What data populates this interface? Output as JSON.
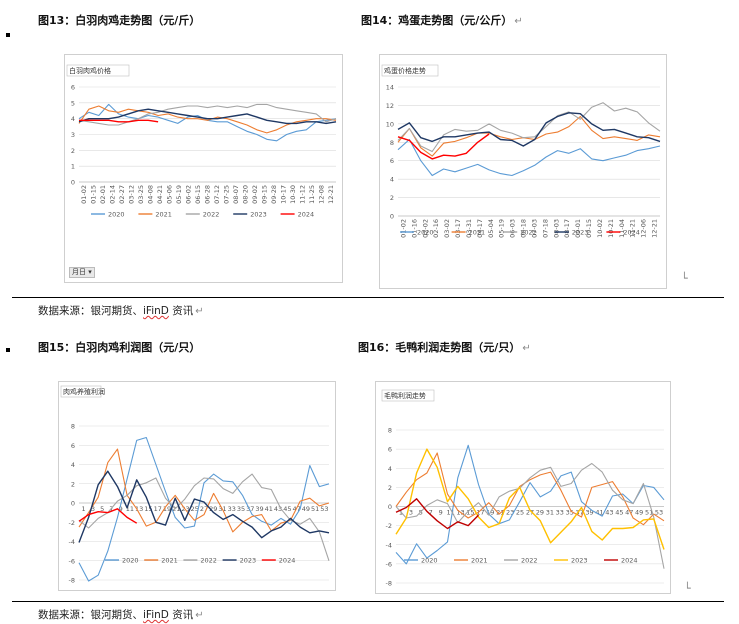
{
  "fig13": {
    "title": "图13：白羽肉鸡走势图（元/斤）",
    "chart_data": {
      "type": "line",
      "title": "白羽肉鸡价格",
      "ylim": [
        0,
        6
      ],
      "yticks": [
        "0",
        "1",
        "2",
        "3",
        "4",
        "5",
        "6"
      ],
      "xticks": [
        "01-02",
        "01-15",
        "02-01",
        "02-14",
        "02-27",
        "03-12",
        "03-25",
        "04-08",
        "04-21",
        "05-06",
        "05-19",
        "06-02",
        "06-15",
        "06-28",
        "07-12",
        "07-25",
        "08-07",
        "08-20",
        "09-02",
        "09-15",
        "09-28",
        "10-17",
        "10-30",
        "11-12",
        "11-25",
        "12-08",
        "12-21"
      ],
      "series": [
        {
          "name": "2020",
          "color": "#5b9bd5",
          "values": [
            4.0,
            4.4,
            4.2,
            4.9,
            4.3,
            4.1,
            4.0,
            4.2,
            4.1,
            3.9,
            3.7,
            4.1,
            4.2,
            3.9,
            3.8,
            3.8,
            3.5,
            3.2,
            3.0,
            2.7,
            2.6,
            3.0,
            3.2,
            3.3,
            3.8,
            3.9,
            4.0
          ]
        },
        {
          "name": "2021",
          "color": "#ed7d31",
          "values": [
            3.7,
            4.6,
            4.8,
            4.5,
            4.4,
            4.6,
            4.5,
            4.4,
            4.2,
            4.3,
            4.1,
            4.0,
            4.0,
            3.9,
            4.1,
            4.0,
            3.8,
            3.6,
            3.3,
            3.1,
            3.3,
            3.6,
            3.8,
            3.9,
            4.0,
            4.0,
            3.9
          ]
        },
        {
          "name": "2022",
          "color": "#a5a5a5",
          "values": [
            3.9,
            3.8,
            3.7,
            3.6,
            3.6,
            3.8,
            4.0,
            4.3,
            4.4,
            4.6,
            4.7,
            4.8,
            4.8,
            4.7,
            4.8,
            4.7,
            4.8,
            4.7,
            4.9,
            4.9,
            4.7,
            4.6,
            4.5,
            4.4,
            4.3,
            3.8,
            4.0
          ]
        },
        {
          "name": "2023",
          "color": "#1f3864",
          "values": [
            3.8,
            4.0,
            4.0,
            4.0,
            4.1,
            4.3,
            4.5,
            4.6,
            4.5,
            4.4,
            4.3,
            4.2,
            4.1,
            4.0,
            4.0,
            4.1,
            4.2,
            4.3,
            4.1,
            3.9,
            3.8,
            3.7,
            3.7,
            3.8,
            3.8,
            3.7,
            3.8
          ]
        },
        {
          "name": "2024",
          "color": "#ff0000",
          "values": [
            3.9,
            3.9,
            3.9,
            3.9,
            3.8,
            3.8,
            3.9,
            3.9,
            3.8
          ]
        }
      ],
      "filter_label": "月日"
    }
  },
  "fig14": {
    "title": "图14：鸡蛋走势图（元/公斤）",
    "chart_data": {
      "type": "line",
      "title": "鸡蛋价格走势",
      "ylim": [
        0,
        14
      ],
      "yticks": [
        "0",
        "2",
        "4",
        "6",
        "8",
        "10",
        "12",
        "14"
      ],
      "xticks": [
        "01-02",
        "01-16",
        "02-02",
        "02-16",
        "03-02",
        "03-17",
        "03-31",
        "04-17",
        "05-04",
        "05-19",
        "06-03",
        "06-18",
        "07-03",
        "07-18",
        "08-03",
        "08-17",
        "09-01",
        "09-15",
        "10-02",
        "10-21",
        "11-04",
        "11-21",
        "12-06",
        "12-21"
      ],
      "series": [
        {
          "name": "2020",
          "color": "#5b9bd5",
          "values": [
            7.2,
            8.3,
            6.0,
            4.4,
            5.1,
            4.8,
            5.2,
            5.6,
            5.0,
            4.6,
            4.4,
            4.9,
            5.5,
            6.4,
            7.1,
            6.8,
            7.3,
            6.2,
            6.0,
            6.3,
            6.6,
            7.1,
            7.3,
            7.6
          ]
        },
        {
          "name": "2021",
          "color": "#ed7d31",
          "values": [
            8.0,
            9.5,
            7.4,
            6.5,
            7.9,
            8.1,
            8.5,
            9.0,
            9.0,
            8.6,
            8.3,
            8.5,
            8.3,
            8.9,
            9.1,
            9.7,
            10.8,
            9.3,
            8.4,
            8.6,
            8.4,
            8.2,
            8.8,
            8.6
          ]
        },
        {
          "name": "2022",
          "color": "#a5a5a5",
          "values": [
            8.2,
            9.5,
            7.6,
            7.0,
            8.8,
            9.4,
            9.2,
            9.3,
            10.0,
            9.3,
            9.0,
            8.5,
            8.6,
            9.7,
            10.9,
            11.3,
            10.5,
            11.8,
            12.3,
            11.4,
            11.7,
            11.3,
            10.1,
            9.2
          ]
        },
        {
          "name": "2023",
          "color": "#1f3864",
          "values": [
            9.4,
            10.1,
            8.5,
            8.1,
            8.6,
            8.6,
            8.8,
            9.0,
            9.1,
            8.3,
            8.2,
            7.6,
            8.3,
            10.1,
            10.8,
            11.2,
            11.1,
            10.0,
            9.3,
            9.4,
            9.0,
            8.6,
            8.5,
            8.1
          ]
        },
        {
          "name": "2024",
          "color": "#ff0000",
          "values": [
            8.6,
            8.2,
            6.9,
            6.2,
            6.6,
            6.5,
            6.8,
            8.0,
            8.9
          ]
        }
      ]
    }
  },
  "fig15": {
    "title": "图15：白羽肉鸡利润图（元/只）",
    "chart_data": {
      "type": "line",
      "title": "肉鸡养殖利润",
      "ylim": [
        -8,
        8
      ],
      "yticks": [
        "8",
        "6",
        "4",
        "2",
        "0",
        "-2",
        "-4",
        "-6",
        "-8"
      ],
      "xticks": [
        "1",
        "3",
        "5",
        "7",
        "9",
        "11",
        "13",
        "15",
        "17",
        "19",
        "21",
        "23",
        "25",
        "27",
        "29",
        "31",
        "33",
        "35",
        "37",
        "39",
        "41",
        "43",
        "45",
        "47",
        "49",
        "51",
        "53"
      ],
      "series": [
        {
          "name": "2020",
          "color": "#5b9bd5",
          "values": [
            -6.2,
            -8.1,
            -7.5,
            -5.0,
            -1.5,
            2.5,
            6.5,
            6.8,
            4.0,
            1.2,
            -1.5,
            -2.6,
            -2.4,
            2.1,
            3.0,
            2.3,
            2.2,
            0.8,
            -1.2,
            -1.9,
            -2.3,
            -1.6,
            -2.2,
            -0.6,
            3.9,
            1.7,
            2.0
          ]
        },
        {
          "name": "2021",
          "color": "#ed7d31",
          "values": [
            -2.5,
            -1.0,
            0.6,
            4.2,
            5.6,
            0.8,
            -0.6,
            -2.4,
            -2.0,
            -0.4,
            0.8,
            -0.6,
            -1.8,
            -1.2,
            1.0,
            -0.8,
            -3.0,
            -2.0,
            -1.4,
            -1.2,
            -2.9,
            -2.1,
            -1.8,
            0.2,
            0.5,
            -0.3,
            0.0
          ]
        },
        {
          "name": "2022",
          "color": "#a5a5a5",
          "values": [
            -1.8,
            -2.6,
            -1.6,
            -1.0,
            0.2,
            0.8,
            1.8,
            2.1,
            2.6,
            0.5,
            -0.6,
            0.4,
            1.8,
            2.6,
            2.5,
            1.5,
            1.0,
            2.2,
            3.0,
            1.6,
            1.4,
            -0.6,
            -1.8,
            -2.2,
            -1.6,
            -3.0,
            -6.0
          ]
        },
        {
          "name": "2023",
          "color": "#1f3864",
          "values": [
            -4.1,
            -1.5,
            1.9,
            3.3,
            1.7,
            -0.5,
            2.4,
            0.6,
            -2.0,
            -2.3,
            0.5,
            -1.8,
            0.4,
            0.1,
            -1.0,
            -1.7,
            -1.2,
            -1.9,
            -2.5,
            -3.6,
            -2.9,
            -2.5,
            -1.6,
            -2.5,
            -3.1,
            -2.9,
            -3.1
          ]
        },
        {
          "name": "2024",
          "color": "#ff0000",
          "values": [
            -1.9,
            -1.2,
            -0.9,
            -1.0,
            -0.6,
            -1.5,
            -2.1
          ]
        }
      ]
    }
  },
  "fig16": {
    "title": "图16：毛鸭利润走势图（元/只）",
    "chart_data": {
      "type": "line",
      "title": "毛鸭利润走势",
      "ylim": [
        -8,
        8
      ],
      "yticks": [
        "8",
        "6",
        "4",
        "2",
        "0",
        "-2",
        "-4",
        "-6",
        "-8"
      ],
      "xticks": [
        "1",
        "3",
        "5",
        "7",
        "9",
        "11",
        "13",
        "15",
        "17",
        "19",
        "21",
        "23",
        "25",
        "27",
        "29",
        "31",
        "33",
        "35",
        "37",
        "39",
        "41",
        "43",
        "45",
        "47",
        "49",
        "51",
        "53"
      ],
      "series": [
        {
          "name": "2020",
          "color": "#5b9bd5",
          "values": [
            -4.8,
            -6.0,
            -3.9,
            -5.4,
            -4.6,
            -3.7,
            3.0,
            6.4,
            2.3,
            -0.8,
            -1.8,
            -1.4,
            0.5,
            2.5,
            1.0,
            1.6,
            3.2,
            3.6,
            0.5,
            -0.4,
            -1.0,
            1.1,
            1.3,
            0.3,
            2.2,
            2.0,
            0.7
          ]
        },
        {
          "name": "2021",
          "color": "#ed7d31",
          "values": [
            0.0,
            1.5,
            2.8,
            3.5,
            5.6,
            1.3,
            -0.4,
            -1.2,
            -0.6,
            0.4,
            -0.8,
            0.1,
            2.1,
            2.8,
            3.3,
            3.6,
            1.7,
            -0.5,
            -1.1,
            2.0,
            2.3,
            2.6,
            1.0,
            -1.2,
            -1.9,
            -0.8,
            -1.5
          ]
        },
        {
          "name": "2022",
          "color": "#a5a5a5",
          "values": [
            0.0,
            -1.2,
            -1.0,
            0.1,
            0.7,
            0.3,
            -1.7,
            -0.5,
            0.4,
            -0.9,
            1.0,
            1.6,
            1.9,
            3.0,
            3.8,
            4.1,
            2.1,
            2.4,
            3.8,
            4.5,
            3.6,
            1.7,
            0.7,
            0.3,
            2.4,
            -1.1,
            -6.5
          ]
        },
        {
          "name": "2023",
          "color": "#ffc000",
          "values": [
            -2.9,
            -1.2,
            3.5,
            6.0,
            4.1,
            0.5,
            2.1,
            0.8,
            -1.1,
            -2.2,
            -1.8,
            0.9,
            2.0,
            -0.4,
            -1.5,
            -3.8,
            -2.7,
            -1.6,
            -0.1,
            -2.6,
            -3.5,
            -2.3,
            -2.3,
            -2.2,
            -1.4,
            -1.3,
            -4.5
          ]
        },
        {
          "name": "2024",
          "color": "#c00000",
          "values": [
            -0.6,
            -0.1,
            0.8,
            -0.5,
            -1.5,
            -2.3,
            -1.6,
            -2.0,
            -0.9
          ]
        }
      ]
    }
  },
  "source1": {
    "text": "数据来源：银河期货、",
    "ifind": "iFinD",
    "tail": " 资讯"
  },
  "source2": {
    "text": "数据来源：银河期货、",
    "ifind": "iFinD",
    "tail": " 资讯"
  },
  "glyphs": {
    "return_mark": "↵",
    "corner_mark": "└"
  }
}
